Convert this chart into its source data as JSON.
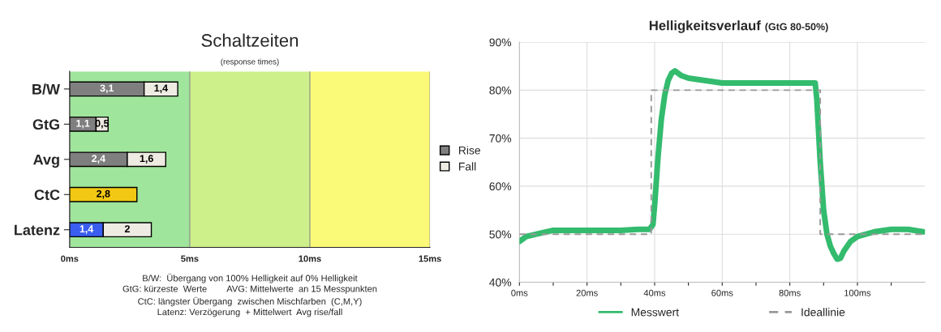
{
  "chart_data": [
    {
      "type": "bar",
      "orientation": "horizontal",
      "stacked": true,
      "title": "Schaltzeiten",
      "subtitle": "(response times)",
      "categories": [
        "B/W",
        "GtG",
        "Avg",
        "CtC",
        "Latenz"
      ],
      "series": [
        {
          "name": "Rise",
          "color": "#7f7f7f",
          "colors": [
            "#7f7f7f",
            "#7f7f7f",
            "#7f7f7f",
            "#f2c814",
            "#3a5ef0"
          ],
          "values": [
            3.1,
            1.1,
            2.4,
            2.8,
            1.4
          ],
          "value_labels": [
            "3,1",
            "1,1",
            "2,4",
            "2,8",
            "1,4"
          ]
        },
        {
          "name": "Fall",
          "color": "#eeebe2",
          "values": [
            1.4,
            0.5,
            1.6,
            null,
            2
          ],
          "value_labels": [
            "1,4",
            "0,5",
            "1,6",
            null,
            "2"
          ]
        }
      ],
      "xlim": [
        0,
        15
      ],
      "xticks": [
        {
          "value": 0,
          "label": "0ms"
        },
        {
          "value": 5,
          "label": "5ms"
        },
        {
          "value": 10,
          "label": "10ms"
        },
        {
          "value": 15,
          "label": "15ms"
        }
      ],
      "grid": "x",
      "legend": "right",
      "bands": [
        {
          "axis": "x",
          "from": 0,
          "to": 5,
          "color": "#9fe59b"
        },
        {
          "axis": "x",
          "from": 5,
          "to": 10,
          "color": "#cdf08a"
        },
        {
          "axis": "x",
          "from": 10,
          "to": 15,
          "color": "#fafa78"
        }
      ],
      "annotations": [
        "B/W:  Übergang von 100% Helligkeit auf 0% Helligkeit",
        "GtG: kürzeste  Werte        AVG: Mittelwerte  an 15 Messpunkten",
        "CtC: längster Übergang  zwischen Mischfarben  (C,M,Y)",
        "Latenz: Verzögerung  + Mittelwert  Avg rise/fall"
      ]
    },
    {
      "type": "line",
      "title": "Helligkeitsverlauf",
      "subtitle": "(GtG 80-50%)",
      "series": [
        {
          "name": "Messwert",
          "color": "#33bb6e",
          "line_style": "solid",
          "x": [
            0,
            2,
            5,
            10,
            15,
            20,
            25,
            30,
            35,
            38.5,
            39.5,
            40,
            41,
            42,
            43,
            44,
            45,
            46,
            48,
            50,
            55,
            60,
            65,
            70,
            75,
            80,
            85,
            87.5,
            88,
            89,
            90,
            91,
            92,
            93,
            94,
            95,
            96,
            98,
            100,
            105,
            110,
            115,
            119.5
          ],
          "values": [
            48.5,
            49.5,
            50,
            50.8,
            50.8,
            50.8,
            50.8,
            50.8,
            51,
            51,
            52,
            56,
            66,
            74,
            79,
            82,
            83.5,
            84,
            83,
            82.5,
            82,
            81.5,
            81.5,
            81.5,
            81.5,
            81.5,
            81.5,
            81.5,
            78,
            65,
            55,
            50,
            47.5,
            46,
            44.8,
            45,
            46.5,
            48.5,
            49.5,
            50.5,
            51,
            51,
            50.5
          ]
        },
        {
          "name": "Ideallinie",
          "color": "#999999",
          "line_style": "dashed",
          "x": [
            0,
            39,
            39,
            89,
            89,
            120
          ],
          "values": [
            50,
            50,
            80,
            80,
            50,
            50
          ]
        }
      ],
      "xlim": [
        0,
        120
      ],
      "xticks": [
        {
          "value": 0,
          "label": "0ms"
        },
        {
          "value": 10,
          "label": null
        },
        {
          "value": 20,
          "label": "20ms"
        },
        {
          "value": 30,
          "label": null
        },
        {
          "value": 40,
          "label": "40ms"
        },
        {
          "value": 50,
          "label": null
        },
        {
          "value": 60,
          "label": "60ms"
        },
        {
          "value": 70,
          "label": null
        },
        {
          "value": 80,
          "label": "80ms"
        },
        {
          "value": 90,
          "label": null
        },
        {
          "value": 100,
          "label": "100ms"
        },
        {
          "value": 110,
          "label": null
        }
      ],
      "ylim": [
        40,
        90
      ],
      "yticks": [
        {
          "value": 40,
          "label": "40%"
        },
        {
          "value": 50,
          "label": "50%"
        },
        {
          "value": 60,
          "label": "60%"
        },
        {
          "value": 70,
          "label": "70%"
        },
        {
          "value": 80,
          "label": "80%"
        },
        {
          "value": 90,
          "label": "90%"
        }
      ],
      "grid": true,
      "legend": "bottom"
    }
  ]
}
